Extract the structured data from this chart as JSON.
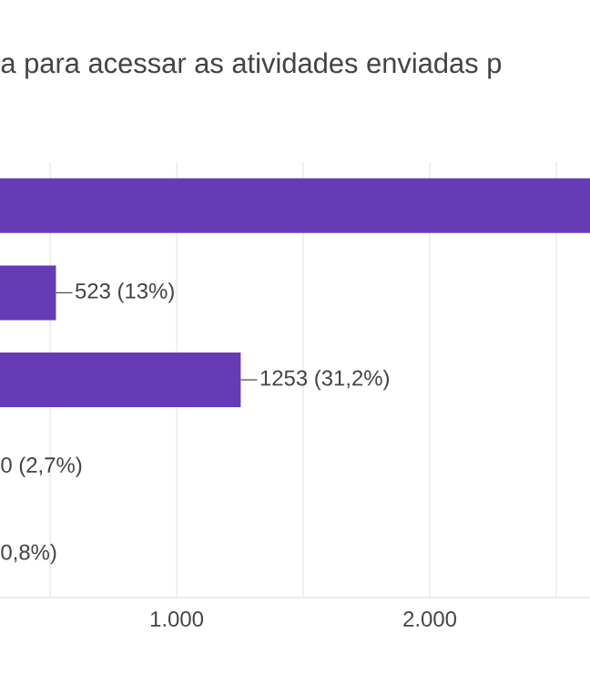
{
  "chart_data": {
    "type": "bar",
    "orientation": "horizontal",
    "title": "a para acessar  as atividades enviadas p",
    "categories": [
      null,
      null,
      null,
      null,
      null
    ],
    "values": [
      2633,
      523,
      1253,
      null,
      null
    ],
    "value_labels": [
      null,
      "523 (13%)",
      "1253 (31,2%)",
      "0 (2,7%)",
      "0,8%)"
    ],
    "color": "#673ab7",
    "xlim": [
      302,
      2633
    ],
    "xticks": [
      {
        "value": 500,
        "label": null
      },
      {
        "value": 1000,
        "label": "1.000"
      },
      {
        "value": 1500,
        "label": null
      },
      {
        "value": 2000,
        "label": "2.000"
      },
      {
        "value": 2500,
        "label": null
      }
    ],
    "grid": "x"
  }
}
